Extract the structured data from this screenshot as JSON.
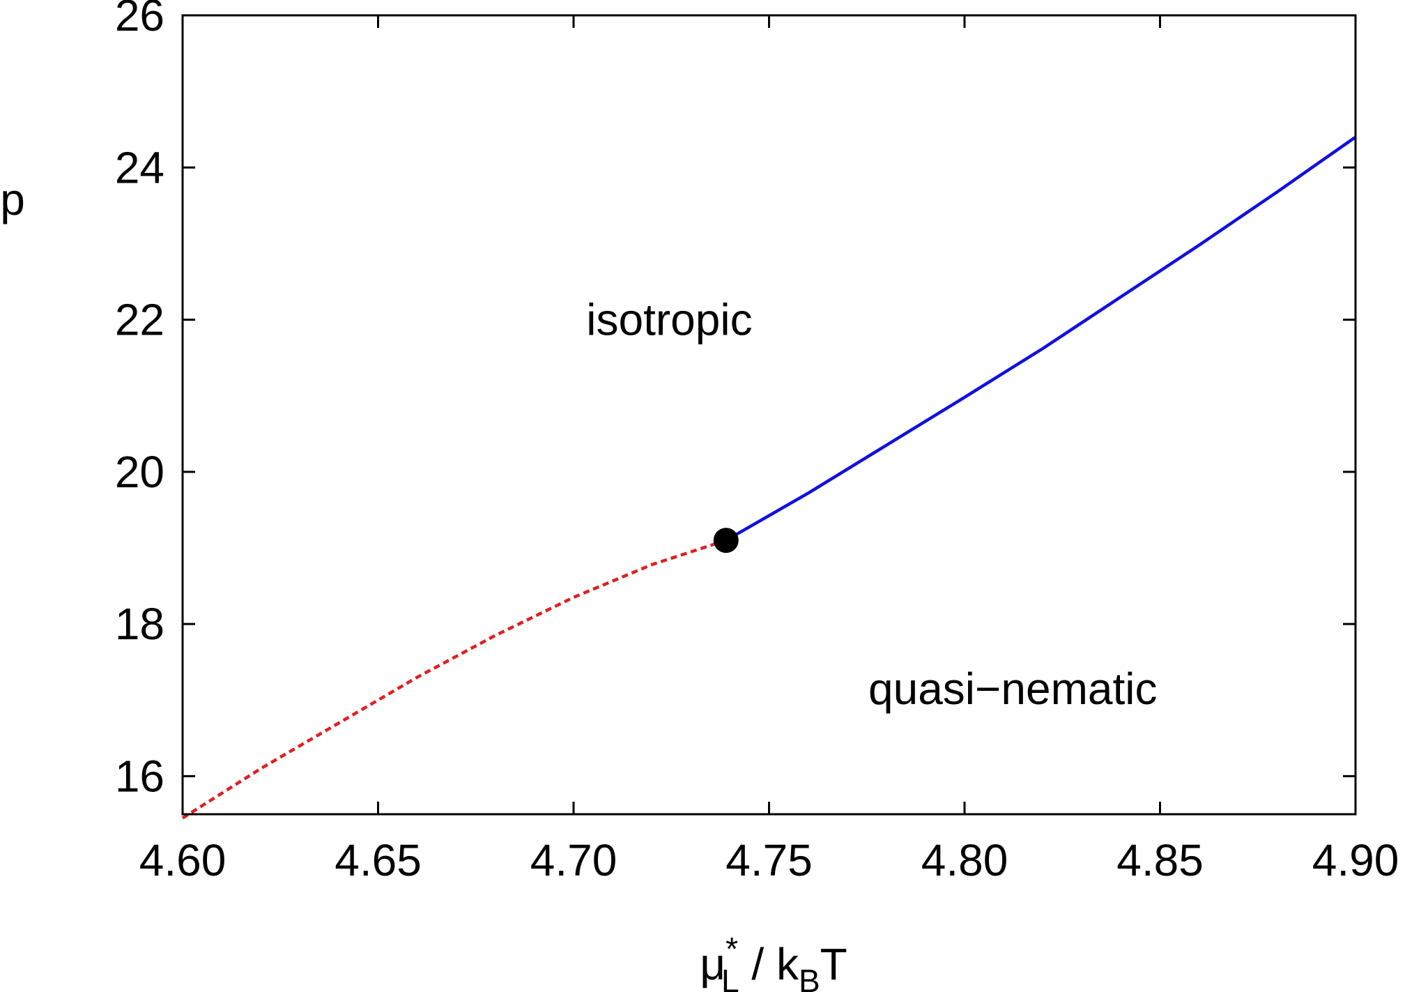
{
  "chart_data": {
    "type": "line",
    "title": "",
    "xlabel": {
      "mu": "μ",
      "sup": "*",
      "sub": "L",
      "mid": " / k",
      "sub2": "B",
      "end": "T"
    },
    "ylabel": "p",
    "xlim": [
      4.6,
      4.9
    ],
    "ylim": [
      15.5,
      26
    ],
    "xticks": [
      4.6,
      4.65,
      4.7,
      4.75,
      4.8,
      4.85,
      4.9
    ],
    "xtick_labels": [
      "4.60",
      "4.65",
      "4.70",
      "4.75",
      "4.80",
      "4.85",
      "4.90"
    ],
    "yticks": [
      16,
      18,
      20,
      22,
      24,
      26
    ],
    "ytick_labels": [
      "16",
      "18",
      "20",
      "22",
      "24",
      "26"
    ],
    "grid": false,
    "series": [
      {
        "style": "dashed",
        "color": "#e02020",
        "x": [
          4.6,
          4.62,
          4.64,
          4.66,
          4.68,
          4.7,
          4.72,
          4.739
        ],
        "y": [
          15.45,
          16.1,
          16.7,
          17.3,
          17.85,
          18.35,
          18.78,
          19.1
        ]
      },
      {
        "style": "solid",
        "color": "#1010e0",
        "x": [
          4.739,
          4.76,
          4.78,
          4.8,
          4.82,
          4.84,
          4.86,
          4.88,
          4.9
        ],
        "y": [
          19.1,
          19.72,
          20.35,
          20.98,
          21.62,
          22.3,
          22.98,
          23.68,
          24.4
        ]
      }
    ],
    "critical_point": {
      "x": 4.739,
      "y": 19.1
    },
    "annotations": [
      {
        "text": "isotropic",
        "x": 4.725,
        "y": 22.0
      },
      {
        "text": "quasi−nematic",
        "x": 4.8,
        "y": 17.15
      }
    ]
  }
}
